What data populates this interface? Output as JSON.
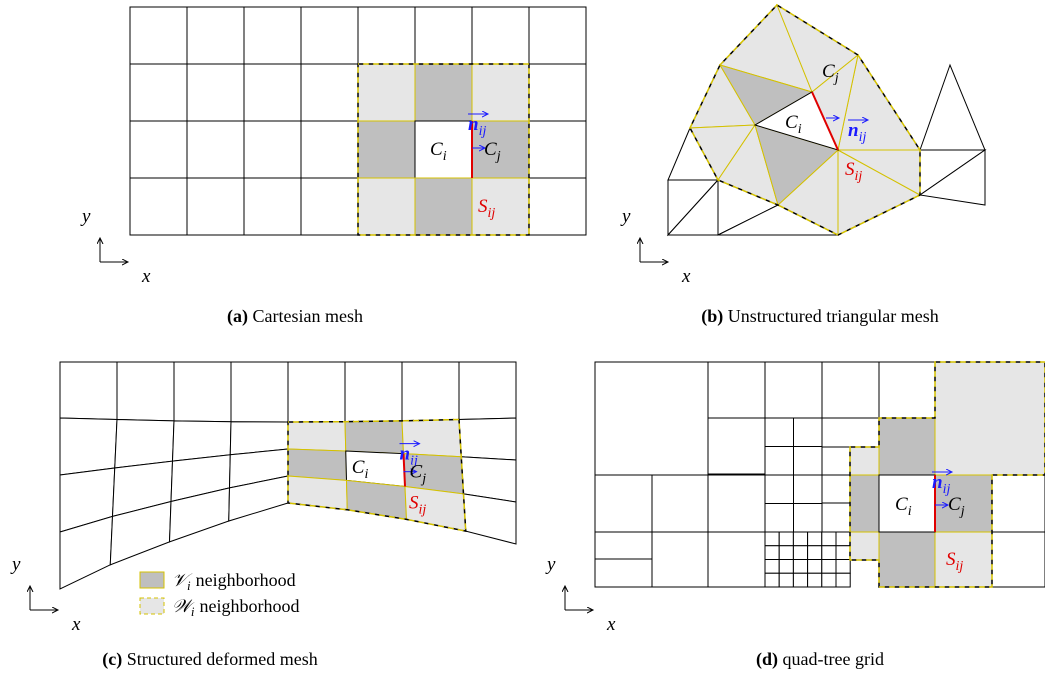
{
  "panels": [
    {
      "tag": "(a)",
      "caption": "Cartesian mesh"
    },
    {
      "tag": "(b)",
      "caption": "Unstructured triangular mesh"
    },
    {
      "tag": "(c)",
      "caption": "Structured deformed mesh"
    },
    {
      "tag": "(d)",
      "caption": "quad-tree grid"
    }
  ],
  "labels": {
    "ci": {
      "base": "C",
      "sub": "i"
    },
    "cj": {
      "base": "C",
      "sub": "j"
    },
    "n": {
      "base": "n",
      "sub": "ij"
    },
    "s": {
      "base": "S",
      "sub": "ij"
    },
    "x": "x",
    "y": "y"
  },
  "legend": [
    {
      "base": "𝒱",
      "sub": "i",
      "text": "neighborhood"
    },
    {
      "base": "𝒲",
      "sub": "i",
      "text": "neighborhood"
    }
  ]
}
